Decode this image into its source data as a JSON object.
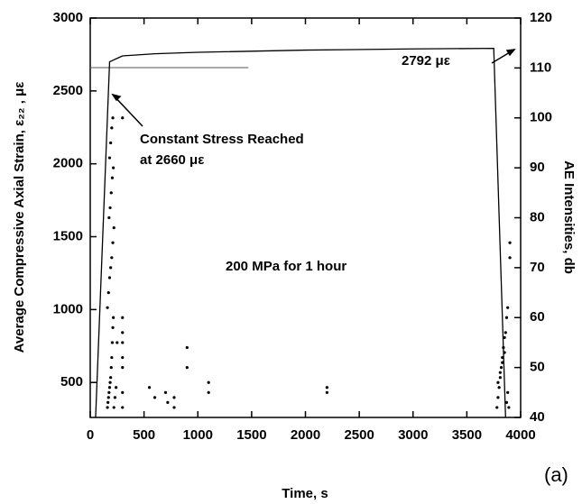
{
  "chart_data": {
    "type": "line",
    "xlabel": "Time, s",
    "ylabel": "Average Compressive Axial Strain, ε₂₂ , με",
    "y2label": "AE Intensities, db",
    "annotations": [
      "Constant Stress Reached",
      "at 2660 με",
      "2792 με",
      "200 MPa for 1 hour",
      "(a)"
    ],
    "xlim": [
      0,
      4000
    ],
    "xticks": [
      0,
      500,
      1000,
      1500,
      2000,
      2500,
      3000,
      3500,
      4000
    ],
    "ylim": [
      260,
      3000
    ],
    "yticks": [
      500,
      1000,
      1500,
      2000,
      2500,
      3000
    ],
    "y2lim": [
      40,
      120
    ],
    "y2ticks": [
      40,
      50,
      60,
      70,
      80,
      90,
      100,
      110,
      120
    ],
    "reference_line": {
      "y": 2660,
      "x": [
        0,
        1470
      ]
    },
    "series": [
      {
        "type": "line",
        "color": "#000000",
        "x": [
          50,
          180,
          300,
          600,
          1000,
          2000,
          3000,
          3750,
          3860
        ],
        "values": [
          260,
          2700,
          2740,
          2755,
          2765,
          2780,
          2788,
          2792,
          260
        ]
      },
      {
        "type": "scatter",
        "axis": "y2",
        "color": "#000000",
        "x": [
          160,
          165,
          170,
          175,
          180,
          185,
          190,
          195,
          200,
          205,
          210,
          215,
          160,
          170,
          180,
          190,
          200,
          210,
          220,
          175,
          185,
          195,
          205,
          215,
          180,
          190,
          200,
          210,
          220,
          230,
          240,
          250,
          300,
          300,
          300,
          300,
          300,
          300,
          300,
          300,
          550,
          600,
          700,
          720,
          780,
          780,
          900,
          900,
          1100,
          1100,
          2200,
          2200,
          3780,
          3790,
          3800,
          3810,
          3820,
          3830,
          3840,
          3850,
          3860,
          3870,
          3880,
          3790,
          3810,
          3830,
          3850,
          3870,
          3880,
          3890,
          3900,
          3900
        ],
        "values": [
          42,
          43,
          44,
          45,
          46,
          47,
          48,
          50,
          52,
          55,
          58,
          60,
          62,
          65,
          68,
          70,
          72,
          75,
          78,
          80,
          82,
          85,
          88,
          90,
          92,
          95,
          98,
          100,
          42,
          44,
          46,
          55,
          100,
          60,
          57,
          55,
          52,
          50,
          45,
          42,
          46,
          44,
          45,
          43,
          44,
          42,
          54,
          50,
          47,
          45,
          46,
          45,
          42,
          44,
          46,
          48,
          50,
          52,
          54,
          56,
          57,
          43,
          45,
          47,
          49,
          51,
          53,
          60,
          62,
          42,
          75,
          72
        ]
      }
    ]
  }
}
